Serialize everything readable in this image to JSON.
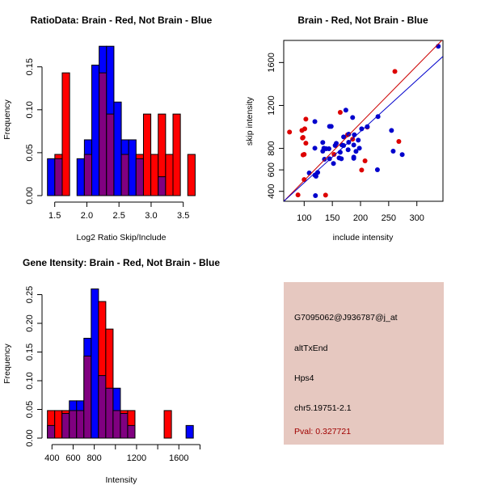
{
  "colors": {
    "blue": "#0000ff",
    "red": "#ff0000",
    "overlap": "#800080",
    "point_blue": "#0000cc",
    "point_red": "#dd0000",
    "info_bg": "#e6c8c0",
    "pval": "#a00000"
  },
  "chart_data": [
    {
      "type": "bar",
      "subtype": "overlaid-histogram",
      "title": "RatioData: Brain - Red, Not Brain - Blue",
      "xlabel": "Log2 Ratio Skip/Include",
      "ylabel": "Frequency",
      "bin_start": 1.387,
      "bin_width": 0.1149,
      "series": [
        {
          "name": "Not Brain",
          "color": "blue",
          "values": [
            0.043,
            0.043,
            0,
            0,
            0.043,
            0.065,
            0.152,
            0.174,
            0.174,
            0.109,
            0.065,
            0.065,
            0.043,
            0,
            0,
            0.022,
            0,
            0,
            0,
            0
          ]
        },
        {
          "name": "Brain",
          "color": "red",
          "values": [
            0,
            0.048,
            0.143,
            0,
            0,
            0.048,
            0,
            0.143,
            0.095,
            0,
            0.048,
            0,
            0.048,
            0.095,
            0.048,
            0.095,
            0.048,
            0.095,
            0,
            0.048
          ]
        }
      ],
      "xticks": [
        1.5,
        2.0,
        2.5,
        3.0,
        3.5
      ],
      "xtick_labels": [
        "1.5",
        "2.0",
        "2.5",
        "3.0",
        "3.5"
      ],
      "yticks": [
        0,
        0.05,
        0.1,
        0.15
      ],
      "ytick_labels": [
        "0.00",
        "0.05",
        "0.10",
        "0.15"
      ],
      "xlim": [
        1.5,
        3.5
      ],
      "ylim": [
        0,
        0.15
      ]
    },
    {
      "type": "scatter",
      "title": "Brain - Red, Not Brain - Blue",
      "xlabel": "include intensity",
      "ylabel": "skip intensity",
      "xlim": [
        63.7,
        346
      ],
      "ylim": [
        307,
        1805
      ],
      "xticks": [
        100,
        150,
        200,
        250,
        300
      ],
      "xtick_labels": [
        "100",
        "150",
        "200",
        "250",
        "300"
      ],
      "yticks": [
        400,
        600,
        800,
        1200,
        1600
      ],
      "ytick_labels": [
        "400",
        "600",
        "800",
        "1200",
        "1600"
      ],
      "series": [
        {
          "name": "Brain",
          "color": "red",
          "points": [
            [
              74,
              952
            ],
            [
              96,
              967
            ],
            [
              101,
              982
            ],
            [
              103,
              1073
            ],
            [
              97,
              897
            ],
            [
              98,
              902
            ],
            [
              103,
              849
            ],
            [
              98,
              739
            ],
            [
              100,
              744
            ],
            [
              100,
              510
            ],
            [
              89,
              367
            ],
            [
              138,
              365
            ],
            [
              164,
              1136
            ],
            [
              153,
              744
            ],
            [
              177,
              927
            ],
            [
              186,
              885
            ],
            [
              212,
              998
            ],
            [
              202,
              598
            ],
            [
              208,
              684
            ],
            [
              261,
              1517
            ],
            [
              268,
              865
            ]
          ]
        },
        {
          "name": "Not Brain",
          "color": "blue",
          "points": [
            [
              338,
              1751
            ],
            [
              119,
              1050
            ],
            [
              174,
              1156
            ],
            [
              186,
              1088
            ],
            [
              231,
              1096
            ],
            [
              145,
              1005
            ],
            [
              148,
              1005
            ],
            [
              202,
              982
            ],
            [
              212,
              1002
            ],
            [
              255,
              967
            ],
            [
              133,
              855
            ],
            [
              157,
              847
            ],
            [
              155,
              827
            ],
            [
              119,
              802
            ],
            [
              135,
              802
            ],
            [
              139,
              797
            ],
            [
              144,
              797
            ],
            [
              133,
              774
            ],
            [
              170,
              907
            ],
            [
              179,
              932
            ],
            [
              189,
              927
            ],
            [
              179,
              857
            ],
            [
              196,
              877
            ],
            [
              167,
              832
            ],
            [
              170,
              827
            ],
            [
              188,
              832
            ],
            [
              198,
              802
            ],
            [
              192,
              772
            ],
            [
              178,
              787
            ],
            [
              164,
              764
            ],
            [
              162,
              711
            ],
            [
              166,
              704
            ],
            [
              188,
              719
            ],
            [
              188,
              707
            ],
            [
              145,
              704
            ],
            [
              136,
              699
            ],
            [
              152,
              659
            ],
            [
              230,
              601
            ],
            [
              258,
              774
            ],
            [
              274,
              742
            ],
            [
              109,
              571
            ],
            [
              124,
              576
            ],
            [
              119,
              551
            ],
            [
              121,
              541
            ],
            [
              120,
              360
            ]
          ]
        }
      ],
      "lines": [
        {
          "name": "Brain fit",
          "color": "red",
          "from": [
            63.7,
            307
          ],
          "to": [
            346,
            1815
          ]
        },
        {
          "name": "Not Brain fit",
          "color": "blue",
          "from": [
            63.7,
            307
          ],
          "to": [
            346,
            1655
          ]
        }
      ]
    },
    {
      "type": "bar",
      "subtype": "overlaid-histogram",
      "title": "Gene Itensity: Brain - Red, Not Brain - Blue",
      "xlabel": "Intensity",
      "ylabel": "Frequency",
      "bin_start": 357,
      "bin_width": 69,
      "series": [
        {
          "name": "Not Brain",
          "color": "blue",
          "values": [
            0.022,
            0,
            0.043,
            0.065,
            0.065,
            0.174,
            0.26,
            0.109,
            0.087,
            0.087,
            0.043,
            0.022,
            0,
            0,
            0,
            0,
            0,
            0,
            0,
            0.022
          ]
        },
        {
          "name": "Brain",
          "color": "red",
          "values": [
            0.048,
            0.048,
            0.048,
            0.048,
            0.048,
            0.143,
            0,
            0.238,
            0.19,
            0.048,
            0.048,
            0.048,
            0,
            0,
            0,
            0,
            0.048,
            0,
            0,
            0
          ]
        }
      ],
      "xticks": [
        400,
        600,
        800,
        1000,
        1200,
        1400,
        1600,
        1800
      ],
      "xtick_labels": [
        "400",
        "600",
        "800",
        "",
        "1200",
        "",
        "1600",
        ""
      ],
      "yticks": [
        0,
        0.05,
        0.1,
        0.15,
        0.2,
        0.25
      ],
      "ytick_labels": [
        "0.00",
        "0.05",
        "0.10",
        "0.15",
        "0.20",
        "0.25"
      ],
      "xlim": [
        400,
        1800
      ],
      "ylim": [
        0,
        0.25
      ]
    }
  ],
  "info": {
    "probe": "G7095062@J936787@j_at",
    "event": "altTxEnd",
    "gene": "Hps4",
    "location": "chr5.19751-2.1",
    "pval": "Pval: 0.327721"
  }
}
